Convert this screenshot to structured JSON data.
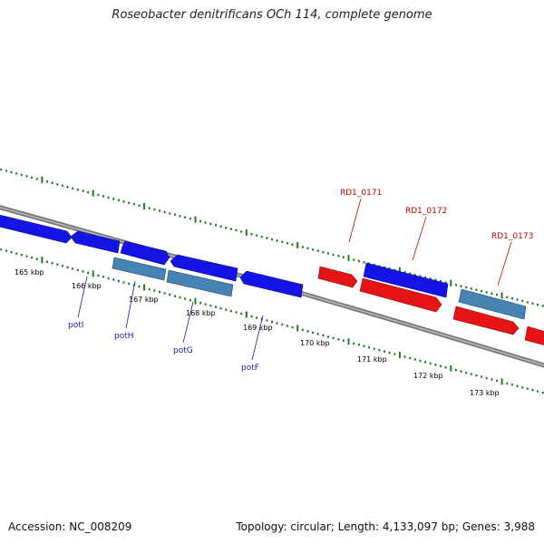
{
  "title": "Roseobacter denitrificans OCh 114, complete genome",
  "accession": "Accession: NC_008209",
  "topology": "Topology: circular; Length: 4,133,097 bp; Genes: 3,988",
  "kbp_labels": [
    "165 kbp",
    "166 kbp",
    "167 kbp",
    "168 kbp",
    "169 kbp",
    "170 kbp",
    "171 kbp",
    "172 kbp",
    "173 kbp"
  ],
  "gene_labels": {
    "potI": "potI",
    "potH": "potH",
    "potG": "potG",
    "potF": "potF",
    "RD1_0171": "RD1_0171",
    "RD1_0172": "RD1_0172",
    "RD1_0173": "RD1_0173"
  },
  "colors": {
    "backbone": "#888888",
    "tick": "#1e7a1e",
    "gene_blue": "#1414e6",
    "gene_steel": "#4682b4",
    "gene_red": "#e61414",
    "label_blue": "#1a1aa8",
    "label_red": "#c00000"
  }
}
